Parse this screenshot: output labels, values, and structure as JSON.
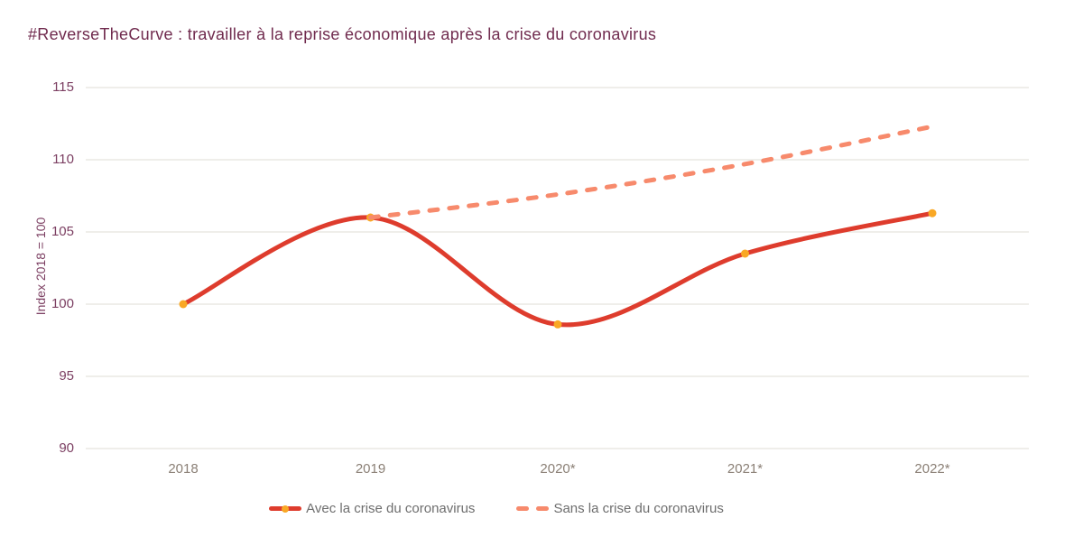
{
  "title": "#ReverseTheCurve : travailler à la reprise économique après la crise du coronavirus",
  "colors": {
    "title": "#702b4e",
    "y_tick": "#7c3f62",
    "y_axis_title": "#7c3f62",
    "x_tick": "#8b8076",
    "grid": "#eae8e3",
    "legend_text": "#6e6e6e",
    "series_avec": "#de3c2d",
    "series_sans": "#f78a6c",
    "marker": "#f9a825",
    "background": "#ffffff"
  },
  "chart_data": {
    "type": "line",
    "title": "#ReverseTheCurve : travailler à la reprise économique après la crise du coronavirus",
    "xlabel": "",
    "ylabel": "Index 2018 = 100",
    "ylim": [
      90,
      115
    ],
    "yticks": [
      115,
      110,
      105,
      100,
      95,
      90
    ],
    "grid": "horizontal",
    "legend_position": "bottom",
    "categories": [
      "2018",
      "2019",
      "2020*",
      "2021*",
      "2022*"
    ],
    "series": [
      {
        "name": "Avec la crise du coronavirus",
        "style": "solid",
        "smooth": true,
        "markers": true,
        "values": [
          100,
          106,
          98.6,
          103.5,
          106.3
        ]
      },
      {
        "name": "Sans la crise du coronavirus",
        "style": "dashed",
        "smooth": true,
        "markers": false,
        "values": [
          null,
          106,
          107.6,
          109.7,
          112.3
        ]
      }
    ]
  }
}
